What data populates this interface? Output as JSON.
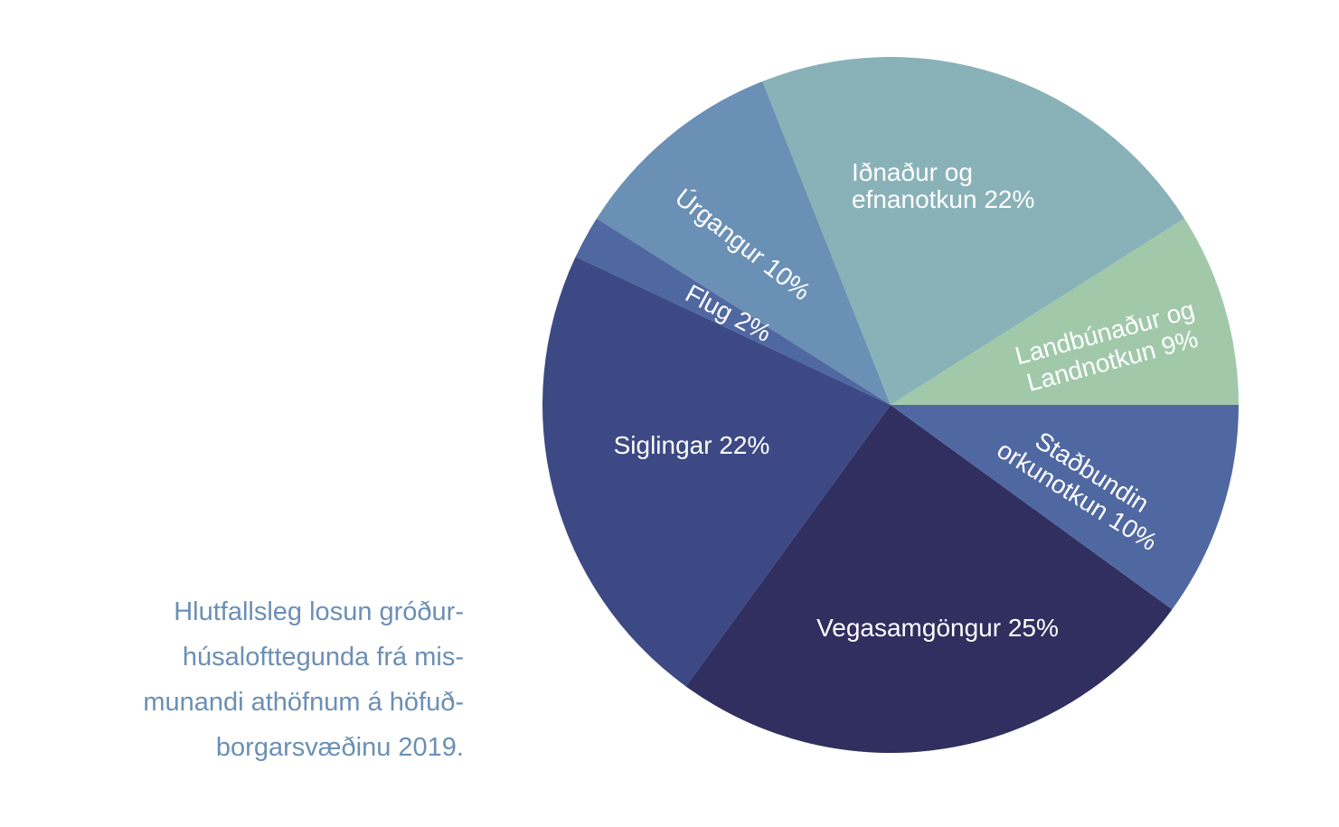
{
  "caption": {
    "lines": [
      "Hlutfallsleg losun gróður-",
      "húsalofttegunda frá mis-",
      "munandi athöfnum á höfuð-",
      "borgarsvæðinu 2019."
    ]
  },
  "chart_data": {
    "type": "pie",
    "start_angle_deg": 0,
    "direction": "counterclockwise",
    "legend": "none",
    "slices": [
      {
        "label": "Landbúnaður og Landnotkun 9%",
        "lines": [
          "Landbúnaður og",
          "Landnotkun 9%"
        ],
        "value": 9,
        "color": "#a1c9a9"
      },
      {
        "label": "Iðnaður og efnanotkun 22%",
        "lines": [
          "Iðnaður og",
          "efnanotkun 22%"
        ],
        "value": 22,
        "color": "#89b2b8"
      },
      {
        "label": "Úrgangur 10%",
        "lines": [
          "Úrgangur 10%"
        ],
        "value": 10,
        "color": "#6b90b5"
      },
      {
        "label": "Flug 2%",
        "lines": [
          "Flug 2%"
        ],
        "value": 2,
        "color": "#5068a1"
      },
      {
        "label": "Siglingar 22%",
        "lines": [
          "Siglingar 22%"
        ],
        "value": 22,
        "color": "#3c4984"
      },
      {
        "label": "Vegasamgöngur 25%",
        "lines": [
          "Vegasamgöngur 25%"
        ],
        "value": 25,
        "color": "#312f5f"
      },
      {
        "label": "Staðbundin orkunotkun 10%",
        "lines": [
          "Staðbundin",
          "orkunotkun 10%"
        ],
        "value": 10,
        "color": "#5068a1"
      }
    ]
  }
}
